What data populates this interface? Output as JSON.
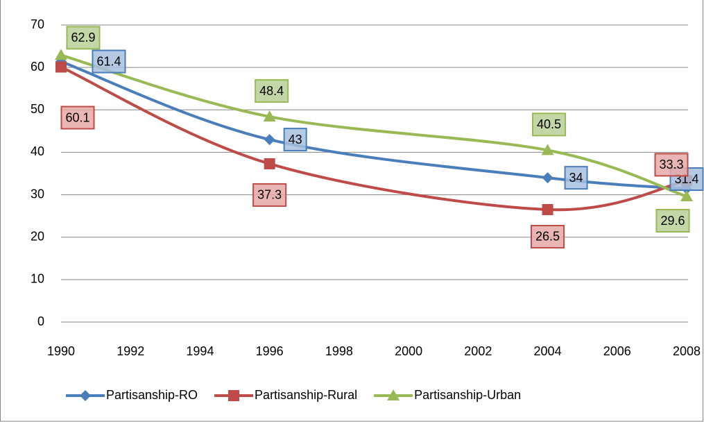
{
  "chart_data": {
    "type": "line",
    "x": [
      1990,
      1996,
      2004,
      2008
    ],
    "series": [
      {
        "name": "Partisanship-RO",
        "color": "#4a7ebb",
        "values": [
          61.4,
          43,
          34,
          31.4
        ]
      },
      {
        "name": "Partisanship-Rural",
        "color": "#be4b48",
        "values": [
          60.1,
          37.3,
          26.5,
          33.3
        ]
      },
      {
        "name": "Partisanship-Urban",
        "color": "#98b954",
        "values": [
          62.9,
          48.4,
          40.5,
          29.6
        ]
      }
    ],
    "xlim": [
      1990,
      2008
    ],
    "xticks": [
      1990,
      1992,
      1994,
      1996,
      1998,
      2000,
      2002,
      2004,
      2006,
      2008
    ],
    "ylim": [
      0,
      70
    ],
    "yticks": [
      0,
      10,
      20,
      30,
      40,
      50,
      60,
      70
    ],
    "grid": true,
    "legend": "bottom"
  }
}
